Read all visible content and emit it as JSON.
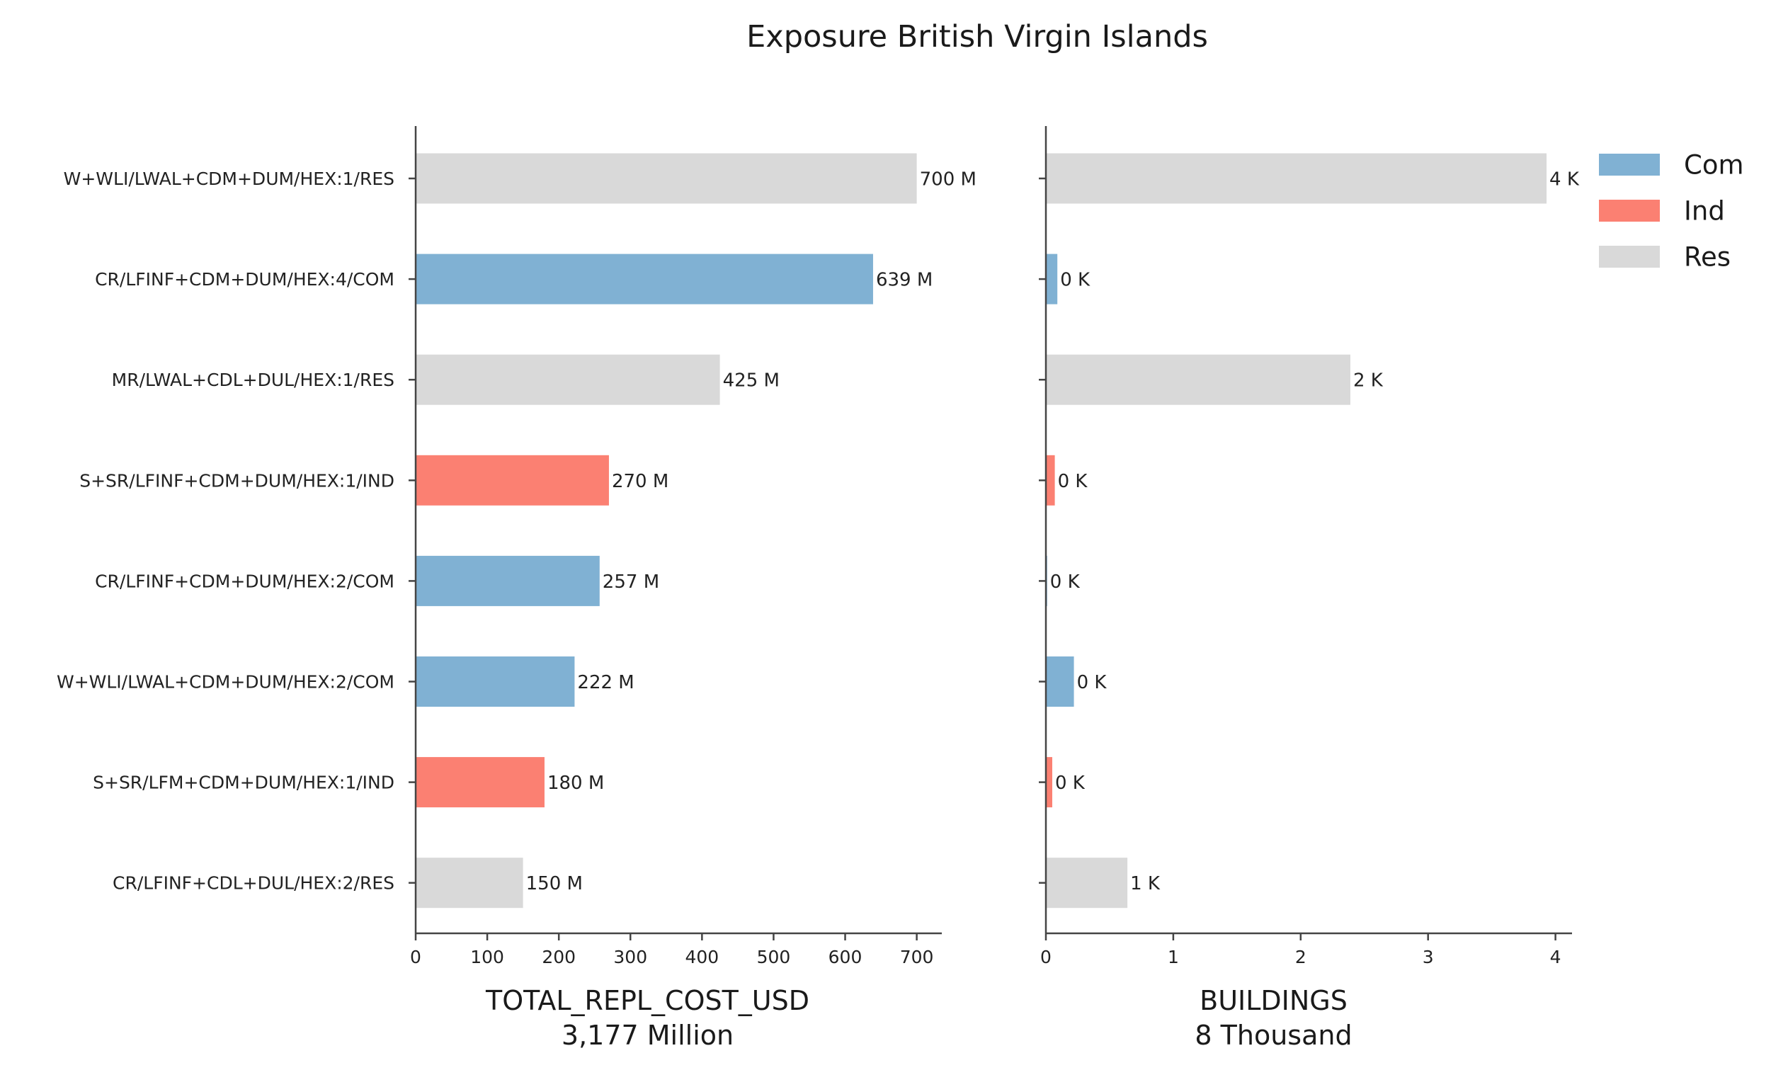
{
  "chart_data": {
    "type": "bar",
    "orientation": "horizontal",
    "title": "Exposure British Virgin Islands",
    "categories": [
      "W+WLI/LWAL+CDM+DUM/HEX:1/RES",
      "CR/LFINF+CDM+DUM/HEX:4/COM",
      "MR/LWAL+CDL+DUL/HEX:1/RES",
      "S+SR/LFINF+CDM+DUM/HEX:1/IND",
      "CR/LFINF+CDM+DUM/HEX:2/COM",
      "W+WLI/LWAL+CDM+DUM/HEX:2/COM",
      "S+SR/LFM+CDM+DUM/HEX:1/IND",
      "CR/LFINF+CDL+DUL/HEX:2/RES"
    ],
    "occupancy": [
      "Res",
      "Com",
      "Res",
      "Ind",
      "Com",
      "Com",
      "Ind",
      "Res"
    ],
    "legend": {
      "position": "top-right",
      "entries": [
        {
          "name": "Com",
          "color": "#80b1d3"
        },
        {
          "name": "Ind",
          "color": "#fb8072"
        },
        {
          "name": "Res",
          "color": "#d9d9d9"
        }
      ]
    },
    "panels": [
      {
        "xlabel": "TOTAL_REPL_COST_USD",
        "subtitle": "3,177 Million",
        "unit": "Million",
        "values": [
          700,
          639,
          425,
          270,
          257,
          222,
          180,
          150
        ],
        "data_labels": [
          "700 M",
          "639 M",
          "425 M",
          "270 M",
          "257 M",
          "222 M",
          "180 M",
          "150 M"
        ],
        "xlim": [
          0,
          735
        ],
        "ticks": [
          0,
          100,
          200,
          300,
          400,
          500,
          600,
          700
        ],
        "tick_labels": [
          "0",
          "100",
          "200",
          "300",
          "400",
          "500",
          "600",
          "700"
        ],
        "show_category_labels": true
      },
      {
        "xlabel": "BUILDINGS",
        "subtitle": "8 Thousand",
        "unit": "Thousand",
        "values": [
          3.93,
          0.09,
          2.39,
          0.07,
          0.01,
          0.22,
          0.05,
          0.64
        ],
        "data_labels": [
          "4 K",
          "0 K",
          "2 K",
          "0 K",
          "0 K",
          "0 K",
          "0 K",
          "1 K"
        ],
        "xlim": [
          0,
          4.13
        ],
        "ticks": [
          0,
          1,
          2,
          3,
          4
        ],
        "tick_labels": [
          "0",
          "1",
          "2",
          "3",
          "4"
        ],
        "show_category_labels": false
      }
    ],
    "grid": false
  }
}
